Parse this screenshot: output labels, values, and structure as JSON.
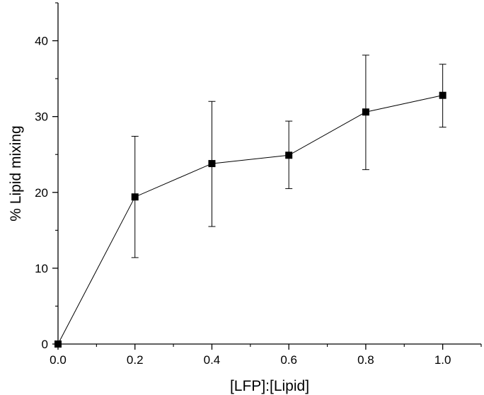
{
  "chart_data": {
    "type": "scatter",
    "title": "",
    "xlabel": "[LFP]:[Lipid]",
    "ylabel": "% Lipid mixing",
    "xlim": [
      0.0,
      1.1
    ],
    "ylim": [
      0,
      45
    ],
    "xticks": [
      "0.0",
      "0.2",
      "0.4",
      "0.6",
      "0.8",
      "1.0"
    ],
    "yticks": [
      "0",
      "10",
      "20",
      "30",
      "40"
    ],
    "grid": false,
    "legend": "none",
    "connected": true,
    "marker": "square",
    "series": [
      {
        "x": [
          0.0,
          0.2,
          0.4,
          0.6,
          0.8,
          1.0
        ],
        "y": [
          0.0,
          19.4,
          23.8,
          24.9,
          30.6,
          32.8
        ],
        "error_low": [
          0.0,
          11.4,
          15.5,
          20.5,
          23.0,
          28.6
        ],
        "error_high": [
          0.0,
          27.4,
          32.0,
          29.4,
          38.1,
          36.9
        ]
      }
    ],
    "colors": {
      "line": "#000000",
      "marker": "#000000"
    }
  }
}
